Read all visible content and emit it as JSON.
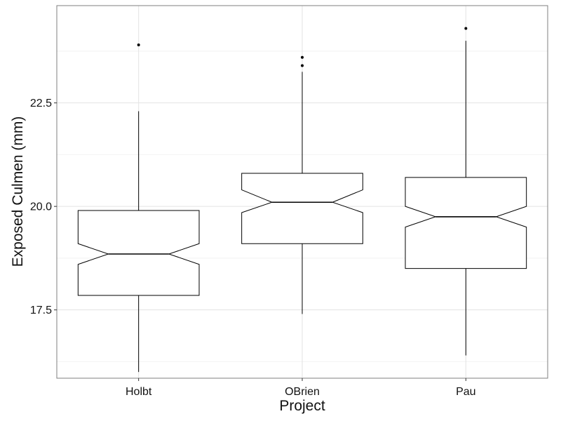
{
  "chart_data": {
    "type": "boxplot",
    "notched": true,
    "grid": true,
    "xlabel": "Project",
    "ylabel": "Exposed Culmen (mm)",
    "ylim": [
      15.85,
      24.85
    ],
    "y_major_ticks": [
      17.5,
      20.0,
      22.5
    ],
    "y_tick_labels": [
      "17.5",
      "20.0",
      "22.5"
    ],
    "y_minor_ticks": [
      16.25,
      18.75,
      21.25,
      23.75
    ],
    "categories": [
      "Holbt",
      "OBrien",
      "Pau"
    ],
    "boxes": [
      {
        "category": "Holbt",
        "whisker_low": 16.0,
        "q1": 17.85,
        "median": 18.85,
        "q3": 19.9,
        "whisker_high": 22.3,
        "notch_low": 18.6,
        "notch_high": 19.1,
        "outliers": [
          23.9
        ]
      },
      {
        "category": "OBrien",
        "whisker_low": 17.4,
        "q1": 19.1,
        "median": 20.1,
        "q3": 20.8,
        "whisker_high": 23.25,
        "notch_low": 19.85,
        "notch_high": 20.4,
        "outliers": [
          23.4,
          23.6
        ]
      },
      {
        "category": "Pau",
        "whisker_low": 16.4,
        "q1": 18.5,
        "median": 19.75,
        "q3": 20.7,
        "whisker_high": 24.0,
        "notch_low": 19.5,
        "notch_high": 20.0,
        "outliers": [
          24.3
        ]
      }
    ]
  }
}
